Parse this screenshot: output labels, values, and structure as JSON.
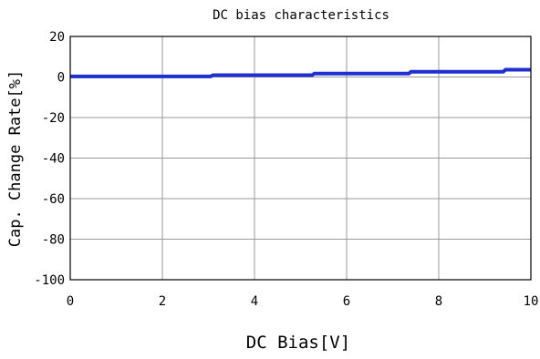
{
  "chart_data": {
    "type": "line",
    "title": "DC bias characteristics",
    "xlabel": "DC Bias[V]",
    "ylabel": "Cap. Change Rate[%]",
    "xlim": [
      0,
      10
    ],
    "ylim": [
      -100,
      20
    ],
    "xticks": [
      0,
      2,
      4,
      6,
      8,
      10
    ],
    "yticks": [
      20,
      0,
      -20,
      -40,
      -60,
      -80,
      -100
    ],
    "grid": true,
    "legend": "none",
    "series": [
      {
        "color": "#1f2fd0",
        "x": [
          0,
          3.05,
          3.1,
          5.25,
          5.3,
          7.35,
          7.4,
          9.4,
          9.45,
          10
        ],
        "y": [
          0.3,
          0.3,
          0.9,
          0.9,
          1.7,
          1.7,
          2.6,
          2.6,
          3.6,
          3.6
        ]
      }
    ]
  }
}
